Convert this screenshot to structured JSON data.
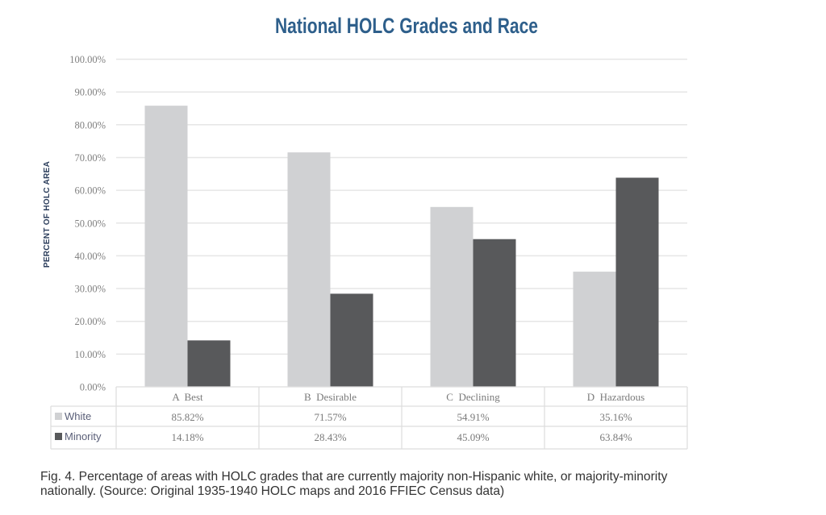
{
  "chart_data": {
    "type": "bar",
    "title": "National HOLC Grades and Race",
    "xlabel": "",
    "ylabel": "PERCENT OF HOLC AREA",
    "ylim": [
      0,
      100
    ],
    "yticks": [
      "0.00%",
      "10.00%",
      "20.00%",
      "30.00%",
      "40.00%",
      "50.00%",
      "60.00%",
      "70.00%",
      "80.00%",
      "90.00%",
      "100.00%"
    ],
    "grid": true,
    "legend": "data-table-bottom",
    "categories": [
      "A  Best",
      "B  Desirable",
      "C  Declining",
      "D  Hazardous"
    ],
    "series": [
      {
        "name": "White",
        "color": "#d0d1d3",
        "values": [
          85.82,
          71.57,
          54.91,
          35.16
        ],
        "labels": [
          "85.82%",
          "71.57%",
          "54.91%",
          "35.16%"
        ]
      },
      {
        "name": "Minority",
        "color": "#58595b",
        "values": [
          14.18,
          28.43,
          45.09,
          63.84
        ],
        "labels": [
          "14.18%",
          "28.43%",
          "45.09%",
          "63.84%"
        ]
      }
    ]
  },
  "caption": {
    "line1": "Fig. 4. Percentage of areas with HOLC grades that are currently majority non-Hispanic white, or majority-minority",
    "line2": "nationally. (Source: Original 1935-1940 HOLC maps and 2016 FFIEC Census data)"
  }
}
